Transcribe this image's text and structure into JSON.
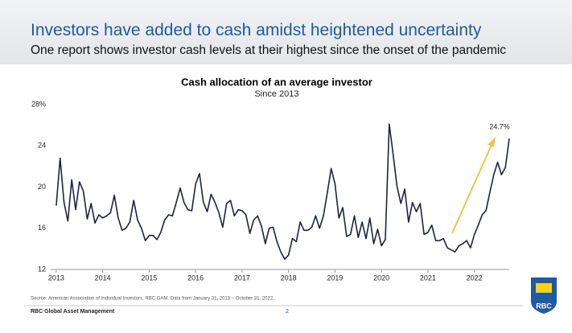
{
  "header": {
    "title": "Investors have added to cash amidst heightened uncertainty",
    "subtitle": "One report shows investor cash levels at their highest since the onset of the pandemic"
  },
  "footer": {
    "source": "Source: American Association of Individual Investors, RBC GAM. Data from January 31, 2013 – October 31, 2022.",
    "company": "RBC Global Asset Management",
    "page": "2",
    "logo": "RBC"
  },
  "chart_data": {
    "type": "line",
    "title": "Cash allocation of an average investor",
    "subtitle": "Since 2013",
    "color": "#1b2440",
    "x": [
      2013,
      2013.083,
      2013.167,
      2013.25,
      2013.333,
      2013.417,
      2013.5,
      2013.583,
      2013.667,
      2013.75,
      2013.833,
      2013.917,
      2014,
      2014.083,
      2014.167,
      2014.25,
      2014.333,
      2014.417,
      2014.5,
      2014.583,
      2014.667,
      2014.75,
      2014.833,
      2014.917,
      2015,
      2015.083,
      2015.167,
      2015.25,
      2015.333,
      2015.417,
      2015.5,
      2015.583,
      2015.667,
      2015.75,
      2015.833,
      2015.917,
      2016,
      2016.083,
      2016.167,
      2016.25,
      2016.333,
      2016.417,
      2016.5,
      2016.583,
      2016.667,
      2016.75,
      2016.833,
      2016.917,
      2017,
      2017.083,
      2017.167,
      2017.25,
      2017.333,
      2017.417,
      2017.5,
      2017.583,
      2017.667,
      2017.75,
      2017.833,
      2017.917,
      2018,
      2018.083,
      2018.167,
      2018.25,
      2018.333,
      2018.417,
      2018.5,
      2018.583,
      2018.667,
      2018.75,
      2018.833,
      2018.917,
      2019,
      2019.083,
      2019.167,
      2019.25,
      2019.333,
      2019.417,
      2019.5,
      2019.583,
      2019.667,
      2019.75,
      2019.833,
      2019.917,
      2020,
      2020.083,
      2020.167,
      2020.25,
      2020.333,
      2020.417,
      2020.5,
      2020.583,
      2020.667,
      2020.75,
      2020.833,
      2020.917,
      2021,
      2021.083,
      2021.167,
      2021.25,
      2021.333,
      2021.417,
      2021.5,
      2021.583,
      2021.667,
      2021.75,
      2021.833,
      2021.917,
      2022,
      2022.083,
      2022.167,
      2022.25,
      2022.333,
      2022.417,
      2022.5,
      2022.583,
      2022.667,
      2022.75
    ],
    "values": [
      18.2,
      22.8,
      18.5,
      16.7,
      20.7,
      17.8,
      20.5,
      19.6,
      16.9,
      18.4,
      16.5,
      17.3,
      17.0,
      17.2,
      17.5,
      19.2,
      17.0,
      15.8,
      16.0,
      16.6,
      18.7,
      16.8,
      16.0,
      14.8,
      15.3,
      15.3,
      14.9,
      15.6,
      16.8,
      17.3,
      17.2,
      18.5,
      19.9,
      18.5,
      17.8,
      17.7,
      20.3,
      21.3,
      18.5,
      17.6,
      19.3,
      18.5,
      17.5,
      16.1,
      18.4,
      18.7,
      17.2,
      17.8,
      17.7,
      17.3,
      15.5,
      16.8,
      17.2,
      16.2,
      14.5,
      16.0,
      16.1,
      14.7,
      13.7,
      13.0,
      13.4,
      15.0,
      14.7,
      16.6,
      15.8,
      15.8,
      16.1,
      17.2,
      16.0,
      17.2,
      19.4,
      21.8,
      20.3,
      17.0,
      18.0,
      15.2,
      15.4,
      17.2,
      15.1,
      16.6,
      15.0,
      17.0,
      14.5,
      15.9,
      14.3,
      14.9,
      26.1,
      23.2,
      20.1,
      18.4,
      19.8,
      16.6,
      18.5,
      17.6,
      18.4,
      15.4,
      15.6,
      16.3,
      14.8,
      14.8,
      15.0,
      14.1,
      13.9,
      13.7,
      14.3,
      14.5,
      14.8,
      14.1,
      15.4,
      16.3,
      17.3,
      17.7,
      19.5,
      21.2,
      22.4,
      21.2,
      21.9,
      24.7
    ],
    "value_labels": [
      null,
      null,
      null,
      null,
      null,
      null,
      null,
      null,
      null,
      null,
      null,
      null,
      null,
      null,
      null,
      null,
      null,
      null,
      null,
      null,
      null,
      null,
      null,
      null,
      null,
      null,
      null,
      null,
      null,
      null,
      null,
      null,
      null,
      null,
      null,
      null,
      null,
      null,
      null,
      null,
      null,
      null,
      null,
      null,
      null,
      null,
      null,
      null,
      null,
      null,
      null,
      null,
      null,
      null,
      null,
      null,
      null,
      null,
      null,
      null,
      null,
      null,
      null,
      null,
      null,
      null,
      null,
      null,
      null,
      null,
      null,
      null,
      null,
      null,
      null,
      null,
      null,
      null,
      null,
      null,
      null,
      null,
      null,
      null,
      null,
      null,
      null,
      null,
      null,
      null,
      null,
      null,
      null,
      null,
      null,
      null,
      null,
      null,
      null,
      null,
      null,
      null,
      null,
      null,
      null,
      null,
      null,
      null,
      null,
      null,
      null,
      null,
      null,
      null,
      null,
      null,
      null,
      "24.7%"
    ],
    "xlim": [
      2012.88,
      2022.75
    ],
    "xticks": [
      2013,
      2014,
      2015,
      2016,
      2017,
      2018,
      2019,
      2020,
      2021,
      2022
    ],
    "ylim": [
      12,
      28
    ],
    "yticks": [
      {
        "value": 28,
        "label": "28%"
      },
      24,
      20,
      16,
      12
    ],
    "grid": false
  }
}
